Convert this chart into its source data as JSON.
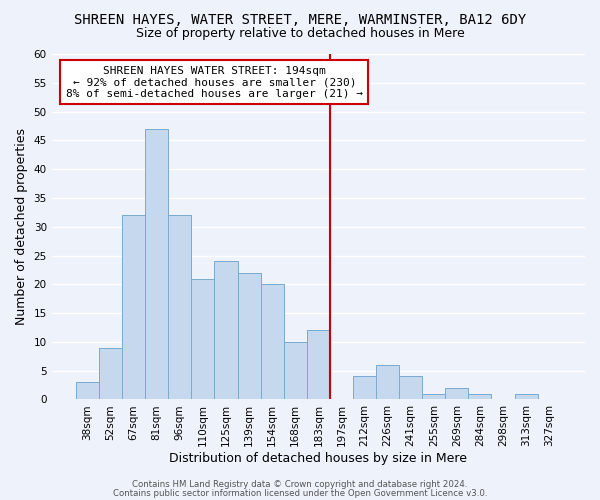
{
  "title": "SHREEN HAYES, WATER STREET, MERE, WARMINSTER, BA12 6DY",
  "subtitle": "Size of property relative to detached houses in Mere",
  "xlabel": "Distribution of detached houses by size in Mere",
  "ylabel": "Number of detached properties",
  "bar_labels": [
    "38sqm",
    "52sqm",
    "67sqm",
    "81sqm",
    "96sqm",
    "110sqm",
    "125sqm",
    "139sqm",
    "154sqm",
    "168sqm",
    "183sqm",
    "197sqm",
    "212sqm",
    "226sqm",
    "241sqm",
    "255sqm",
    "269sqm",
    "284sqm",
    "298sqm",
    "313sqm",
    "327sqm"
  ],
  "bar_values": [
    3,
    9,
    32,
    47,
    32,
    21,
    24,
    22,
    20,
    10,
    12,
    0,
    4,
    6,
    4,
    1,
    2,
    1,
    0,
    1,
    0
  ],
  "bar_color": "#c5d8ee",
  "bar_edge_color": "#7aaad0",
  "vline_x_index": 11,
  "vline_color": "#cc0000",
  "annotation_title": "SHREEN HAYES WATER STREET: 194sqm",
  "annotation_line2": "← 92% of detached houses are smaller (230)",
  "annotation_line3": "8% of semi-detached houses are larger (21) →",
  "annotation_box_color": "#cc0000",
  "ylim": [
    0,
    60
  ],
  "yticks": [
    0,
    5,
    10,
    15,
    20,
    25,
    30,
    35,
    40,
    45,
    50,
    55,
    60
  ],
  "footer1": "Contains HM Land Registry data © Crown copyright and database right 2024.",
  "footer2": "Contains public sector information licensed under the Open Government Licence v3.0.",
  "bg_color": "#eef2fa",
  "grid_color": "#ffffff",
  "title_fontsize": 10,
  "subtitle_fontsize": 9,
  "axis_label_fontsize": 9,
  "tick_fontsize": 7.5,
  "annotation_fontsize": 8
}
